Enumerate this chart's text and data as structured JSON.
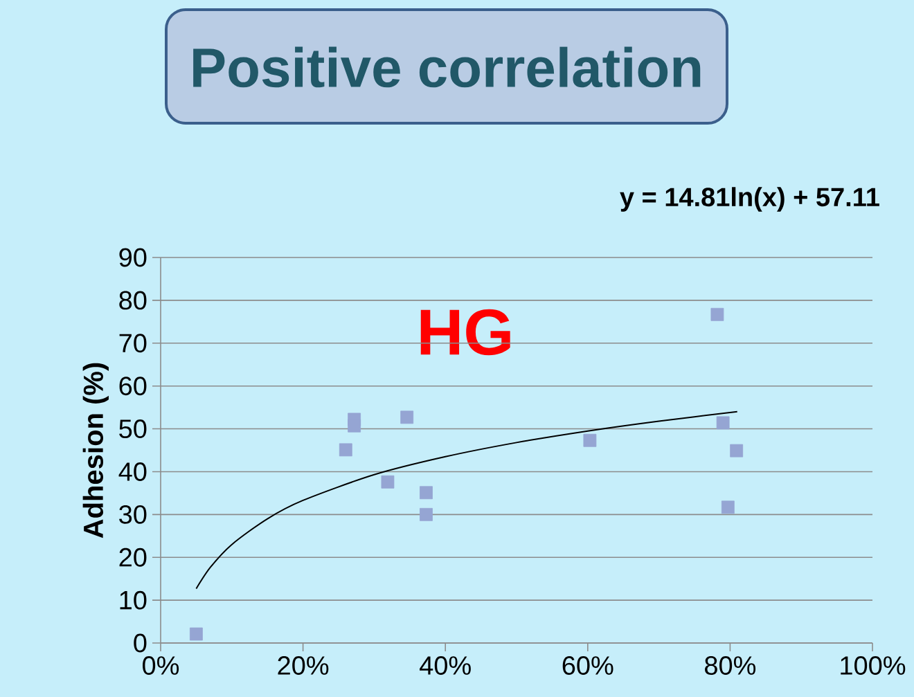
{
  "chart_data": {
    "type": "scatter",
    "title": "Positive correlation",
    "ylabel": "Adhesion (%)",
    "annotations": [
      "y = 14.81ln(x) + 57.11",
      "HG"
    ],
    "series": [
      {
        "marker": "square",
        "color": "#95a5d3",
        "x": [
          0.05,
          0.26,
          0.272,
          0.272,
          0.319,
          0.346,
          0.373,
          0.373,
          0.603,
          0.782,
          0.79,
          0.797,
          0.809
        ],
        "values": [
          2.1,
          45.1,
          52.2,
          50.7,
          37.6,
          52.7,
          35.1,
          30.0,
          47.3,
          76.7,
          51.4,
          31.7,
          44.9
        ]
      },
      {
        "type": "line",
        "marker": "none",
        "color": "#000000",
        "x": [
          0.05,
          0.07,
          0.1,
          0.15,
          0.2,
          0.3,
          0.4,
          0.5,
          0.6,
          0.7,
          0.81
        ],
        "values": [
          12.7,
          17.7,
          23.0,
          29.0,
          33.3,
          39.3,
          43.5,
          46.8,
          49.5,
          51.8,
          54.0
        ]
      }
    ],
    "grid": "y",
    "xlim": [
      0,
      1
    ],
    "xticks": [
      {
        "value": 0,
        "label": "0%"
      },
      {
        "value": 0.2,
        "label": "20%"
      },
      {
        "value": 0.4,
        "label": "40%"
      },
      {
        "value": 0.6,
        "label": "60%"
      },
      {
        "value": 0.8,
        "label": "80%"
      },
      {
        "value": 1,
        "label": "100%"
      }
    ],
    "ylim": [
      0,
      90
    ],
    "yticks": [
      0,
      10,
      20,
      30,
      40,
      50,
      60,
      70,
      80,
      90
    ]
  }
}
